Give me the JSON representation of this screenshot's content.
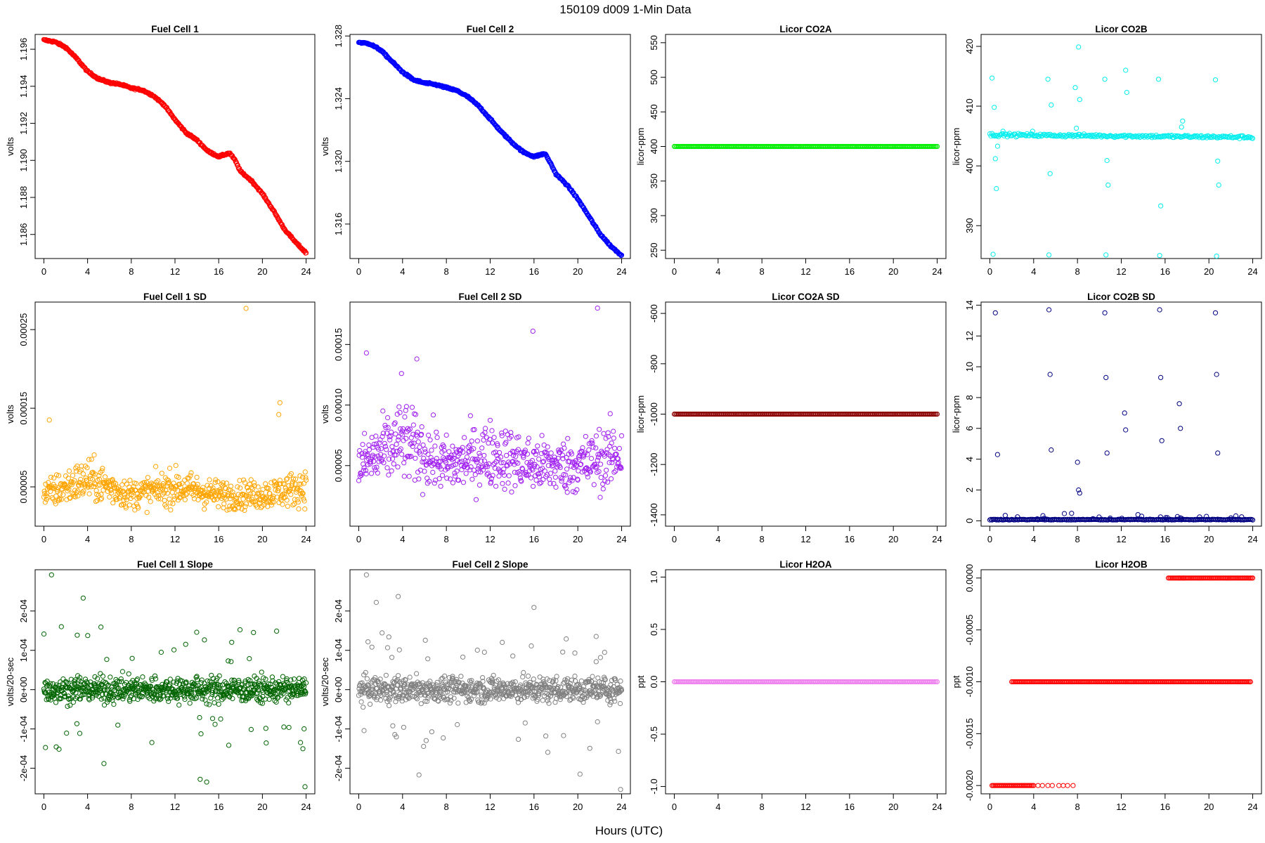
{
  "figure": {
    "title": "150109   d009   1-Min Data",
    "xlabel": "Hours (UTC)"
  },
  "chart_data": [
    {
      "type": "scatter",
      "title": "Fuel Cell 1",
      "ylabel": "volts",
      "color": "#ff0000",
      "xlim": [
        -0.8,
        24.8
      ],
      "ylim": [
        1.1847,
        1.1968
      ],
      "xticks": [
        "0",
        "4",
        "8",
        "12",
        "16",
        "20",
        "24"
      ],
      "yticks": [
        "1.186",
        "1.188",
        "1.190",
        "1.192",
        "1.194",
        "1.196"
      ],
      "ytick_values": [
        1.186,
        1.188,
        1.19,
        1.192,
        1.194,
        1.196
      ],
      "series": [
        {
          "x": [
            0,
            1,
            2,
            3,
            4,
            5,
            6,
            7,
            8,
            9,
            10,
            11,
            12,
            13,
            14,
            15,
            16,
            17,
            17.5,
            18,
            19,
            20,
            21,
            22,
            23,
            24
          ],
          "y": [
            1.1965,
            1.1964,
            1.1961,
            1.1955,
            1.1948,
            1.1944,
            1.1942,
            1.1941,
            1.1939,
            1.1938,
            1.1935,
            1.193,
            1.1922,
            1.1915,
            1.1911,
            1.1905,
            1.1902,
            1.1904,
            1.19,
            1.1894,
            1.1889,
            1.1882,
            1.1873,
            1.1863,
            1.1856,
            1.185
          ]
        }
      ]
    },
    {
      "type": "scatter",
      "title": "Fuel Cell 2",
      "ylabel": "volts",
      "color": "#0000ff",
      "xlim": [
        -0.8,
        24.8
      ],
      "ylim": [
        1.3138,
        1.3281
      ],
      "xticks": [
        "0",
        "4",
        "8",
        "12",
        "16",
        "20",
        "24"
      ],
      "yticks": [
        "1.316",
        "1.320",
        "1.324",
        "1.328"
      ],
      "ytick_values": [
        1.316,
        1.32,
        1.324,
        1.328
      ],
      "series": [
        {
          "x": [
            0,
            1,
            2,
            3,
            4,
            5,
            6,
            7,
            8,
            9,
            10,
            11,
            12,
            13,
            14,
            15,
            16,
            17,
            17.5,
            18,
            19,
            20,
            21,
            22,
            23,
            24
          ],
          "y": [
            1.3276,
            1.3275,
            1.3271,
            1.3264,
            1.3257,
            1.3252,
            1.325,
            1.3249,
            1.3247,
            1.3245,
            1.3241,
            1.3235,
            1.3227,
            1.3219,
            1.3212,
            1.3206,
            1.3203,
            1.3205,
            1.3199,
            1.3192,
            1.3185,
            1.3176,
            1.3165,
            1.3154,
            1.3146,
            1.314
          ]
        }
      ]
    },
    {
      "type": "scatter",
      "title": "Licor CO2A",
      "ylabel": "licor-ppm",
      "color": "#00ee00",
      "xlim": [
        -0.8,
        24.8
      ],
      "ylim": [
        238,
        562
      ],
      "xticks": [
        "0",
        "4",
        "8",
        "12",
        "16",
        "20",
        "24"
      ],
      "yticks": [
        "250",
        "300",
        "350",
        "400",
        "450",
        "500",
        "550"
      ],
      "ytick_values": [
        250,
        300,
        350,
        400,
        450,
        500,
        550
      ],
      "series": [
        {
          "x": [
            0,
            24
          ],
          "y": [
            400,
            400
          ]
        }
      ]
    },
    {
      "type": "scatter",
      "title": "Licor CO2B",
      "ylabel": "licor-ppm",
      "color": "#00eeee",
      "xlim": [
        -0.8,
        24.8
      ],
      "ylim": [
        384.5,
        422
      ],
      "xticks": [
        "0",
        "4",
        "8",
        "12",
        "16",
        "20",
        "24"
      ],
      "yticks": [
        "390",
        "400",
        "410",
        "420"
      ],
      "ytick_values": [
        390,
        400,
        410,
        420
      ],
      "series": [
        {
          "x": [
            0,
            24
          ],
          "y": [
            405.2,
            404.8
          ]
        }
      ],
      "outliers": {
        "x": [
          0.2,
          0.3,
          0.4,
          0.5,
          0.6,
          0.7,
          1.2,
          3.9,
          5.3,
          5.4,
          5.5,
          5.6,
          7.8,
          7.9,
          8.1,
          8.2,
          10.5,
          10.6,
          10.7,
          10.8,
          12.4,
          12.5,
          15.4,
          15.5,
          15.6,
          17.5,
          17.6,
          20.6,
          20.7,
          20.8,
          20.9
        ],
        "y": [
          414.7,
          385.2,
          409.8,
          401.2,
          396.2,
          403.3,
          405.8,
          405.8,
          414.5,
          385.1,
          398.7,
          410.2,
          413.1,
          406.3,
          419.9,
          411.1,
          414.5,
          385.1,
          400.9,
          396.8,
          416.0,
          412.3,
          414.5,
          385.0,
          393.3,
          406.5,
          407.5,
          414.4,
          384.9,
          400.8,
          396.8
        ]
      }
    },
    {
      "type": "scatter",
      "title": "Fuel Cell 1 SD",
      "ylabel": "volts",
      "color": "#ffa500",
      "xlim": [
        -0.8,
        24.8
      ],
      "ylim": [
        0,
        0.000285
      ],
      "xticks": [
        "0",
        "4",
        "8",
        "12",
        "16",
        "20",
        "24"
      ],
      "yticks": [
        "0.00005",
        "0.00015",
        "0.00025"
      ],
      "ytick_values": [
        5e-05,
        0.00015,
        0.00025
      ],
      "series": [
        {
          "x": [
            0,
            4,
            8,
            12,
            16,
            20,
            24
          ],
          "y": [
            4e-05,
            6e-05,
            4e-05,
            5e-05,
            4e-05,
            4e-05,
            5e-05
          ]
        }
      ],
      "outliers": {
        "x": [
          18.5,
          21.6,
          21.5,
          0.5
        ],
        "y": [
          0.000277,
          0.000157,
          0.000142,
          0.000135
        ]
      }
    },
    {
      "type": "scatter",
      "title": "Fuel Cell 2 SD",
      "ylabel": "volts",
      "color": "#a020f0",
      "xlim": [
        -0.8,
        24.8
      ],
      "ylim": [
        0,
        0.000185
      ],
      "xticks": [
        "0",
        "4",
        "8",
        "12",
        "16",
        "20",
        "24"
      ],
      "yticks": [
        "0.00005",
        "0.00010",
        "0.00015"
      ],
      "ytick_values": [
        5e-05,
        0.0001,
        0.00015
      ],
      "series": [
        {
          "x": [
            0,
            4,
            8,
            12,
            16,
            20,
            24
          ],
          "y": [
            5e-05,
            7e-05,
            5e-05,
            6e-05,
            5e-05,
            5e-05,
            6e-05
          ]
        }
      ],
      "outliers": {
        "x": [
          21.8,
          15.9,
          0.7,
          5.3,
          3.9
        ],
        "y": [
          0.00018,
          0.000161,
          0.000143,
          0.000138,
          0.000126
        ]
      }
    },
    {
      "type": "scatter",
      "title": "Licor CO2A SD",
      "ylabel": "licor-ppm",
      "color": "#8b0000",
      "xlim": [
        -0.8,
        24.8
      ],
      "ylim": [
        -1445,
        -555
      ],
      "xticks": [
        "0",
        "4",
        "8",
        "12",
        "16",
        "20",
        "24"
      ],
      "yticks": [
        "-1400",
        "-1200",
        "-1000",
        "-800",
        "-600"
      ],
      "ytick_values": [
        -1400,
        -1200,
        -1000,
        -800,
        -600
      ],
      "series": [
        {
          "x": [
            0,
            24
          ],
          "y": [
            -1000,
            -1000
          ]
        }
      ]
    },
    {
      "type": "scatter",
      "title": "Licor CO2B SD",
      "ylabel": "licor-ppm",
      "color": "#000080",
      "xlim": [
        -0.8,
        24.8
      ],
      "ylim": [
        -0.35,
        14.2
      ],
      "xticks": [
        "0",
        "4",
        "8",
        "12",
        "16",
        "20",
        "24"
      ],
      "yticks": [
        "0",
        "2",
        "4",
        "6",
        "8",
        "10",
        "12",
        "14"
      ],
      "ytick_values": [
        0,
        2,
        4,
        6,
        8,
        10,
        12,
        14
      ],
      "series": [
        {
          "x": [
            0,
            24
          ],
          "y": [
            0.05,
            0.05
          ]
        }
      ],
      "outliers": {
        "x": [
          0.5,
          0.7,
          5.4,
          5.5,
          5.6,
          8.0,
          8.1,
          8.2,
          10.5,
          10.6,
          10.7,
          12.3,
          12.4,
          15.5,
          15.6,
          15.7,
          17.3,
          17.4,
          20.6,
          20.7,
          20.8
        ],
        "y": [
          13.5,
          4.3,
          13.7,
          9.5,
          4.6,
          3.8,
          2.0,
          1.8,
          13.5,
          9.3,
          4.4,
          7.0,
          5.9,
          13.7,
          9.3,
          5.2,
          7.6,
          6.0,
          13.5,
          9.5,
          4.4
        ]
      }
    },
    {
      "type": "scatter",
      "title": "Fuel Cell 1 Slope",
      "ylabel": "volts/20-sec",
      "color": "#006400",
      "xlim": [
        -0.8,
        24.8
      ],
      "ylim": [
        -0.000265,
        0.000305
      ],
      "xticks": [
        "0",
        "4",
        "8",
        "12",
        "16",
        "20",
        "24"
      ],
      "yticks": [
        "-2e-04",
        "-1e-04",
        "0e+00",
        "1e-04",
        "2e-04"
      ],
      "ytick_values": [
        -0.0002,
        -0.0001,
        0,
        0.0001,
        0.0002
      ],
      "series": [
        {
          "x": [
            0,
            24
          ],
          "y": [
            0,
            0
          ]
        }
      ],
      "outliers": {
        "x": [
          0.7,
          3.6,
          1.6,
          14.3,
          23.9,
          14.9,
          5.5
        ],
        "y": [
          0.000292,
          0.000233,
          0.00016,
          -0.000228,
          -0.000247,
          -0.000235,
          -0.000188
        ]
      }
    },
    {
      "type": "scatter",
      "title": "Fuel Cell 2 Slope",
      "ylabel": "volts/20-sec",
      "color": "#808080",
      "xlim": [
        -0.8,
        24.8
      ],
      "ylim": [
        -0.000265,
        0.000305
      ],
      "xticks": [
        "0",
        "4",
        "8",
        "12",
        "16",
        "20",
        "24"
      ],
      "yticks": [
        "-2e-04",
        "-1e-04",
        "0e+00",
        "1e-04",
        "2e-04"
      ],
      "ytick_values": [
        -0.0002,
        -0.0001,
        0,
        0.0001,
        0.0002
      ],
      "series": [
        {
          "x": [
            0,
            24
          ],
          "y": [
            0,
            0
          ]
        }
      ],
      "outliers": {
        "x": [
          0.7,
          3.6,
          1.6,
          16.0,
          23.9,
          20.2,
          5.5
        ],
        "y": [
          0.000292,
          0.000237,
          0.000222,
          0.000209,
          -0.000254,
          -0.000215,
          -0.000217
        ]
      }
    },
    {
      "type": "scatter",
      "title": "Licor H2OA",
      "ylabel": "ppt",
      "color": "#ee82ee",
      "xlim": [
        -0.8,
        24.8
      ],
      "ylim": [
        -1.07,
        1.07
      ],
      "xticks": [
        "0",
        "4",
        "8",
        "12",
        "16",
        "20",
        "24"
      ],
      "yticks": [
        "-1.0",
        "-0.5",
        "0.0",
        "0.5",
        "1.0"
      ],
      "ytick_values": [
        -1,
        -0.5,
        0,
        0.5,
        1
      ],
      "series": [
        {
          "x": [
            0,
            24
          ],
          "y": [
            0,
            0
          ]
        }
      ]
    },
    {
      "type": "scatter",
      "title": "Licor H2OB",
      "ylabel": "ppt",
      "color": "#ff0000",
      "xlim": [
        -0.8,
        24.8
      ],
      "ylim": [
        -0.00208,
        8e-05
      ],
      "xticks": [
        "0",
        "4",
        "8",
        "12",
        "16",
        "20",
        "24"
      ],
      "yticks": [
        "-0.0020",
        "-0.0015",
        "-0.0010",
        "-0.0005",
        "0.0000"
      ],
      "ytick_values": [
        -0.002,
        -0.0015,
        -0.001,
        -0.0005,
        0
      ],
      "series": [
        {
          "x": [
            0.2,
            4.0
          ],
          "y": [
            -0.002,
            -0.002
          ]
        },
        {
          "x": [
            2.0,
            23.8
          ],
          "y": [
            -0.001,
            -0.001
          ]
        },
        {
          "x": [
            16.3,
            24.0
          ],
          "y": [
            0,
            0
          ]
        }
      ]
    }
  ]
}
